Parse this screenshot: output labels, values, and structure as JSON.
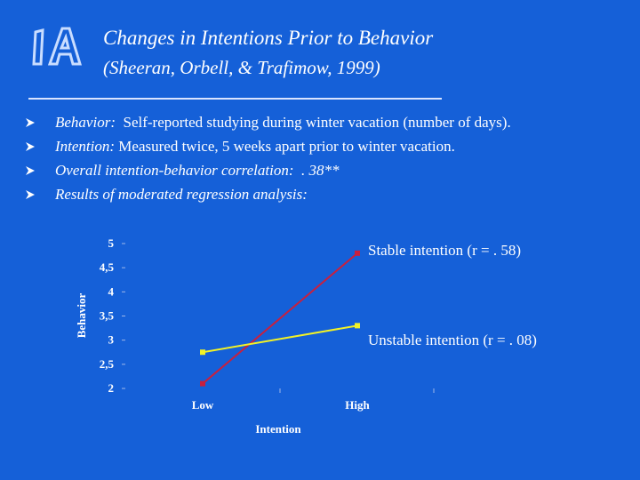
{
  "slide": {
    "title": "Changes in Intentions Prior to Behavior",
    "subtitle": "(Sheeran, Orbell, & Trafimow, 1999)",
    "logo_text": "IA"
  },
  "bullets": [
    {
      "lead": "Behavior:",
      "rest": "  Self-reported studying during winter vacation (number of days)."
    },
    {
      "lead": "Intention:",
      "rest": " Measured twice, 5 weeks apart prior to winter vacation."
    },
    {
      "lead": "Overall intention-behavior correlation:  . 38**",
      "rest": ""
    },
    {
      "lead": "Results of moderated regression analysis:",
      "rest": ""
    }
  ],
  "colors": {
    "background": "#1560d8",
    "stable": "#c8203f",
    "unstable": "#f2f226",
    "text": "#ffffff"
  },
  "chart_data": {
    "type": "line",
    "categories": [
      "Low",
      "High"
    ],
    "xlabel": "Intention",
    "ylabel": "Behavior",
    "ylim": [
      2,
      5
    ],
    "yticks": [
      "5",
      "4,5",
      "4",
      "3,5",
      "3",
      "2,5",
      "2"
    ],
    "series": [
      {
        "name": "Stable intention (r = . 58)",
        "values": [
          2.1,
          4.8
        ],
        "color": "#c8203f"
      },
      {
        "name": "Unstable intention (r = . 08)",
        "values": [
          2.75,
          3.3
        ],
        "color": "#f2f226"
      }
    ]
  }
}
